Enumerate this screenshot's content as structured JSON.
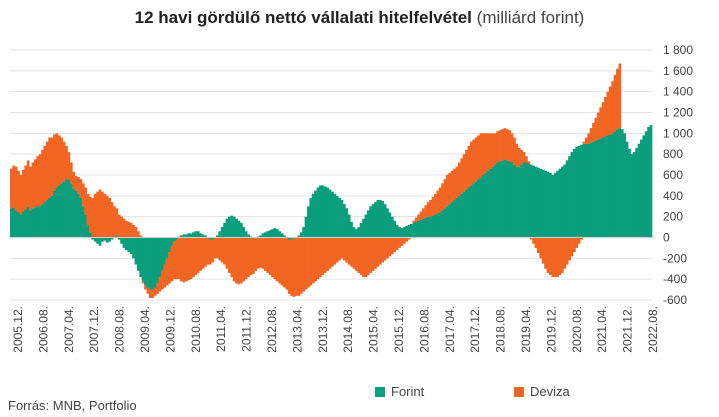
{
  "chart_data": {
    "type": "bar",
    "stacked": true,
    "title": "12 havi gördülő nettó vállalati hitelfelvétel",
    "subtitle": "(milliárd forint)",
    "ylim": [
      -600,
      1800
    ],
    "yticks": [
      -600,
      -400,
      -200,
      0,
      200,
      400,
      600,
      800,
      1000,
      1200,
      1400,
      1600,
      1800
    ],
    "ytick_labels": [
      "-600",
      "-400",
      "-200",
      "0",
      "200",
      "400",
      "600",
      "800",
      "1 000",
      "1 200",
      "1 400",
      "1 600",
      "1 800"
    ],
    "y_axis_position": "right",
    "grid": true,
    "legend_position": "bottom",
    "xtick_labels": [
      "2005.12.",
      "2006.08.",
      "2007.04.",
      "2007.12.",
      "2008.08.",
      "2009.04.",
      "2009.12.",
      "2010.08.",
      "2011.04.",
      "2011.12.",
      "2012.08.",
      "2013.04.",
      "2013.12.",
      "2014.08.",
      "2015.04.",
      "2015.12.",
      "2016.08.",
      "2017.04.",
      "2017.12.",
      "2018.08.",
      "2019.04.",
      "2019.12.",
      "2020.08.",
      "2021.04.",
      "2021.12.",
      "2022.08."
    ],
    "x_start": "2005.12.",
    "x_end": "2022.10.",
    "series": [
      {
        "name": "Forint",
        "color": "#0a9e7d",
        "values": [
          280,
          290,
          260,
          240,
          220,
          250,
          270,
          300,
          260,
          280,
          290,
          300,
          300,
          320,
          340,
          360,
          380,
          400,
          450,
          480,
          500,
          520,
          540,
          560,
          560,
          520,
          470,
          450,
          420,
          380,
          300,
          220,
          120,
          50,
          -20,
          -40,
          -60,
          -80,
          -40,
          -30,
          -50,
          -40,
          -20,
          0,
          20,
          -20,
          -60,
          -100,
          -120,
          -140,
          -160,
          -200,
          -260,
          -320,
          -380,
          -420,
          -460,
          -480,
          -500,
          -500,
          -480,
          -440,
          -380,
          -320,
          -260,
          -200,
          -140,
          -80,
          -40,
          -20,
          10,
          20,
          30,
          30,
          40,
          40,
          50,
          60,
          60,
          40,
          30,
          20,
          0,
          -20,
          -20,
          0,
          20,
          60,
          100,
          140,
          180,
          200,
          210,
          200,
          180,
          160,
          140,
          100,
          60,
          30,
          10,
          -10,
          0,
          10,
          20,
          40,
          50,
          60,
          70,
          80,
          90,
          80,
          60,
          40,
          20,
          0,
          -20,
          -20,
          -10,
          0,
          20,
          50,
          100,
          200,
          300,
          380,
          420,
          450,
          480,
          500,
          500,
          490,
          480,
          460,
          440,
          420,
          400,
          380,
          360,
          320,
          280,
          220,
          150,
          100,
          80,
          100,
          140,
          180,
          220,
          260,
          300,
          320,
          340,
          360,
          360,
          350,
          320,
          280,
          240,
          200,
          160,
          120,
          100,
          90,
          100,
          110,
          120,
          130,
          140,
          150,
          160,
          170,
          180,
          190,
          200,
          200,
          210,
          220,
          230,
          240,
          260,
          280,
          300,
          320,
          340,
          360,
          380,
          400,
          420,
          440,
          460,
          480,
          500,
          520,
          540,
          560,
          580,
          600,
          620,
          640,
          660,
          680,
          700,
          720,
          730,
          740,
          750,
          740,
          730,
          720,
          700,
          680,
          680,
          700,
          720,
          720,
          710,
          700,
          690,
          680,
          670,
          660,
          650,
          640,
          630,
          620,
          600,
          620,
          640,
          660,
          680,
          700,
          740,
          780,
          820,
          850,
          870,
          880,
          890,
          900,
          900,
          900,
          910,
          920,
          930,
          940,
          950,
          960,
          970,
          980,
          990,
          1000,
          1020,
          1040,
          1050,
          1040,
          1000,
          920,
          850,
          800,
          820,
          860,
          900,
          940,
          980,
          1020,
          1060,
          1080
        ]
      },
      {
        "name": "Deviza",
        "color": "#f26522",
        "values": [
          380,
          400,
          420,
          400,
          380,
          400,
          420,
          440,
          420,
          440,
          460,
          480,
          500,
          520,
          540,
          560,
          580,
          560,
          540,
          520,
          480,
          440,
          380,
          320,
          260,
          200,
          160,
          140,
          160,
          180,
          220,
          260,
          300,
          340,
          380,
          420,
          440,
          460,
          440,
          420,
          400,
          380,
          340,
          300,
          260,
          220,
          200,
          180,
          160,
          150,
          140,
          120,
          100,
          60,
          20,
          -20,
          -40,
          -60,
          -80,
          -80,
          -80,
          -100,
          -140,
          -180,
          -220,
          -260,
          -300,
          -340,
          -360,
          -380,
          -400,
          -420,
          -430,
          -420,
          -410,
          -400,
          -380,
          -360,
          -340,
          -320,
          -300,
          -280,
          -260,
          -240,
          -220,
          -200,
          -200,
          -220,
          -240,
          -260,
          -300,
          -340,
          -380,
          -420,
          -440,
          -450,
          -440,
          -420,
          -400,
          -380,
          -360,
          -340,
          -320,
          -300,
          -290,
          -300,
          -320,
          -340,
          -360,
          -380,
          -400,
          -420,
          -440,
          -460,
          -480,
          -500,
          -520,
          -540,
          -560,
          -560,
          -560,
          -540,
          -520,
          -500,
          -480,
          -460,
          -440,
          -420,
          -400,
          -380,
          -360,
          -340,
          -320,
          -300,
          -280,
          -260,
          -240,
          -220,
          -200,
          -220,
          -240,
          -260,
          -280,
          -300,
          -320,
          -340,
          -360,
          -380,
          -380,
          -360,
          -340,
          -320,
          -300,
          -280,
          -260,
          -240,
          -220,
          -200,
          -180,
          -160,
          -140,
          -120,
          -100,
          -80,
          -60,
          -40,
          -20,
          0,
          20,
          40,
          60,
          80,
          100,
          120,
          140,
          160,
          180,
          200,
          220,
          240,
          260,
          280,
          300,
          300,
          300,
          300,
          300,
          320,
          340,
          360,
          380,
          400,
          420,
          420,
          420,
          420,
          420,
          400,
          380,
          360,
          340,
          320,
          300,
          300,
          300,
          300,
          300,
          300,
          300,
          280,
          260,
          220,
          180,
          140,
          100,
          60,
          20,
          -20,
          -60,
          -100,
          -150,
          -200,
          -250,
          -300,
          -340,
          -360,
          -380,
          -380,
          -380,
          -360,
          -340,
          -300,
          -260,
          -220,
          -180,
          -140,
          -100,
          -60,
          -20,
          20,
          60,
          100,
          140,
          180,
          220,
          260,
          300,
          340,
          380,
          420,
          460,
          500,
          540,
          580,
          620
        ]
      }
    ]
  },
  "legend": {
    "forint": "Forint",
    "deviza": "Deviza"
  },
  "source": "Forrás: MNB, Portfolio"
}
